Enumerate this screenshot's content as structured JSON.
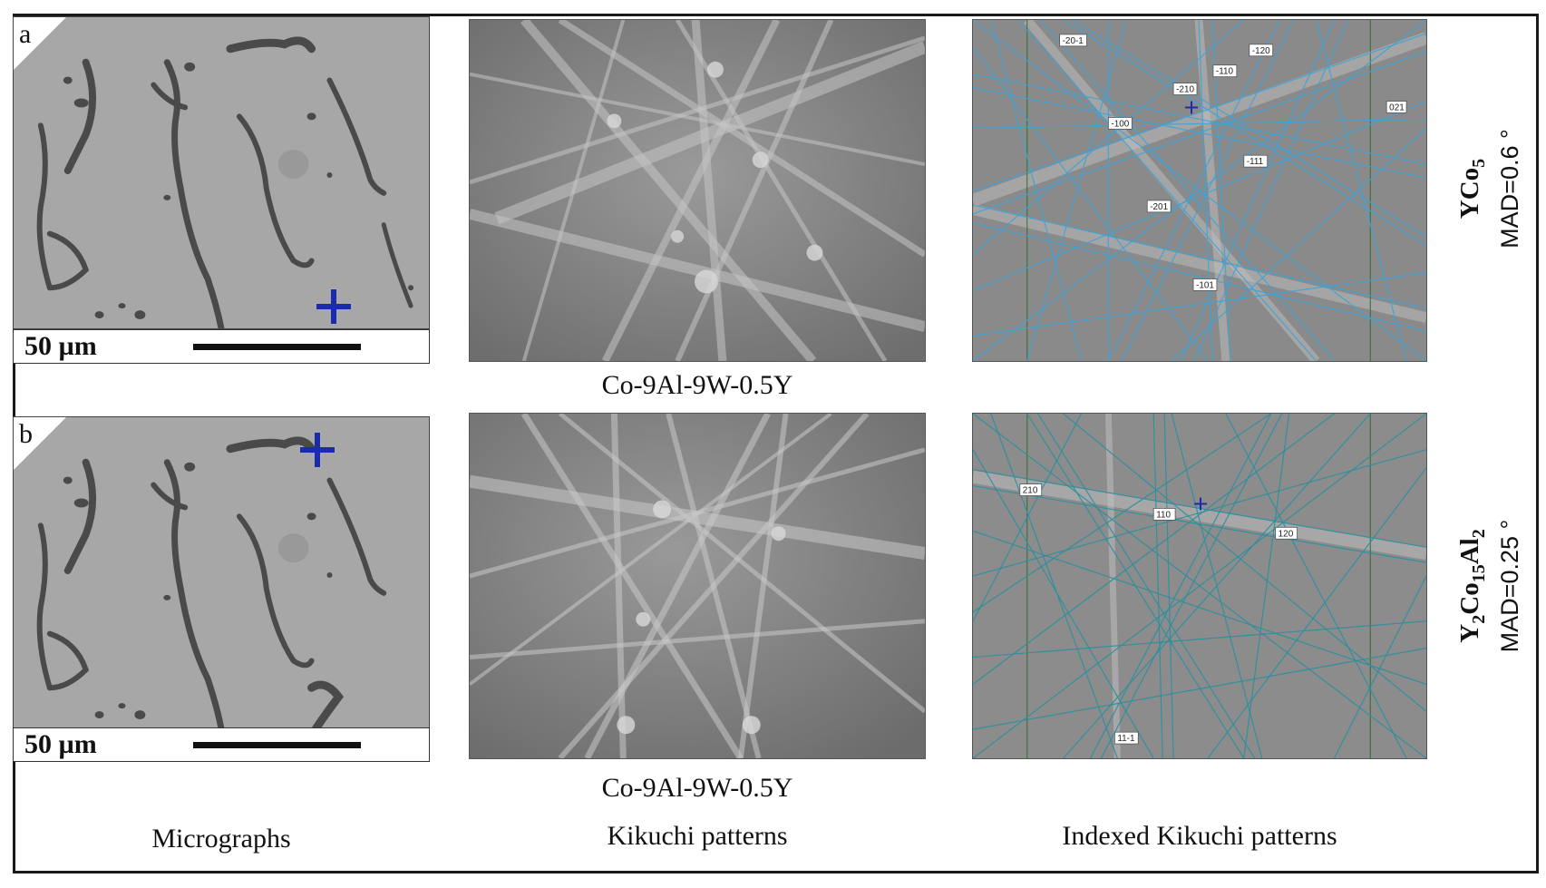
{
  "figure": {
    "rows": [
      {
        "panel_letter": "a",
        "scale_label": "50 µm",
        "alloy_caption": "Co-9Al-9W-0.5Y",
        "phase_main": "YCo",
        "phase_sub1": "5",
        "phase_mid": "",
        "phase_sub2": "",
        "mad": "MAD=0.6 °",
        "indices": [
          "-20-1",
          "-120",
          "-110",
          "-210",
          "-100",
          "021",
          "-111",
          "-201",
          "-101"
        ]
      },
      {
        "panel_letter": "b",
        "scale_label": "50 µm",
        "alloy_caption": "Co-9Al-9W-0.5Y",
        "phase_main": "Y",
        "phase_sub1": "2",
        "phase_mid": "Co",
        "phase_sub2": "15",
        "phase_end": "Al",
        "phase_sub3": "2",
        "mad": "MAD=0.25 °",
        "indices": [
          "210",
          "110",
          "120",
          "11-1"
        ]
      }
    ],
    "column_labels": {
      "micrographs": "Micrographs",
      "kikuchi": "Kikuchi patterns",
      "indexed": "Indexed Kikuchi patterns"
    },
    "colors": {
      "marker": "#1a2bb0",
      "indexed_lines_a": "#3ea3d8",
      "indexed_lines_b": "#2a8f9e"
    }
  }
}
